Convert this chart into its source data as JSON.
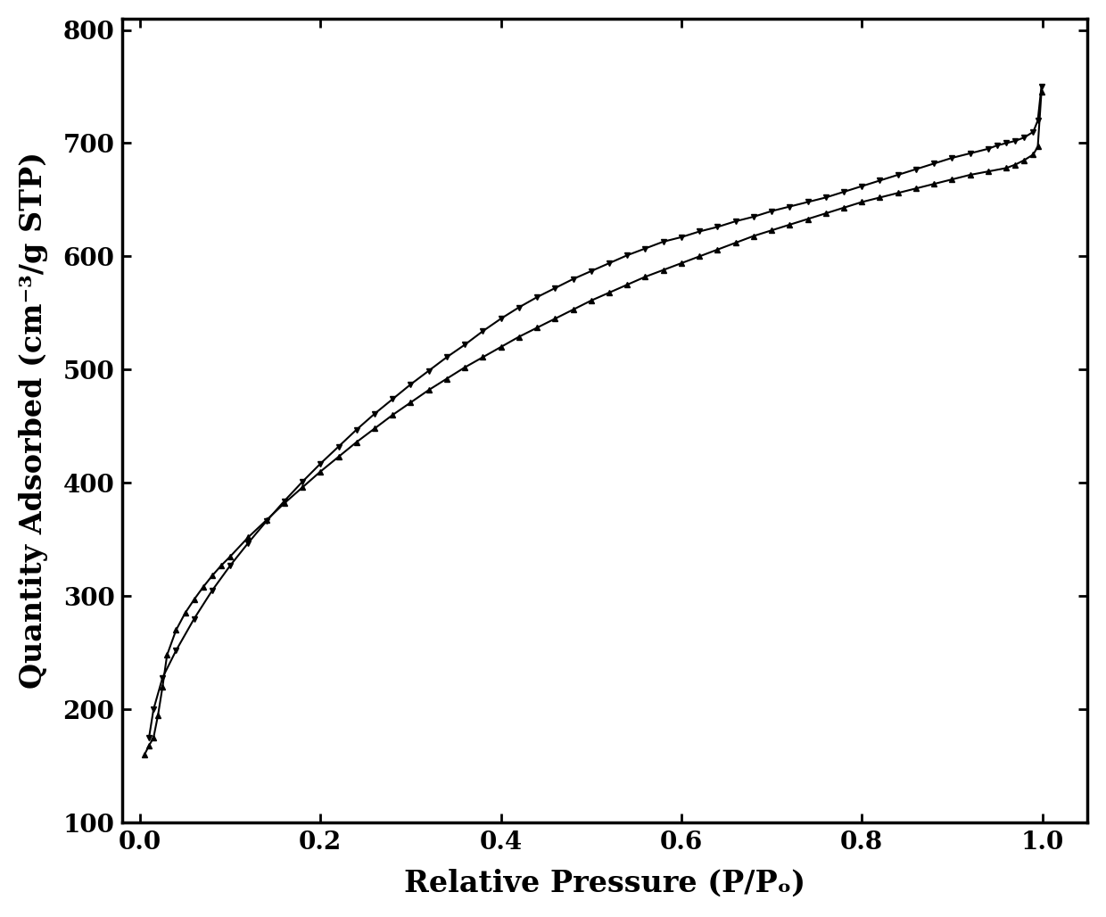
{
  "title": "",
  "xlabel": "Relative Pressure (P/Pₒ)",
  "ylabel": "Quantity Adsorbed (cm⁻³/g STP)",
  "xlim": [
    -0.02,
    1.05
  ],
  "ylim": [
    100,
    810
  ],
  "yticks": [
    100,
    200,
    300,
    400,
    500,
    600,
    700,
    800
  ],
  "xticks": [
    0.0,
    0.2,
    0.4,
    0.6,
    0.8,
    1.0
  ],
  "line_color": "#000000",
  "marker_adsorption": "^",
  "marker_desorption": "v",
  "markersize": 5,
  "linewidth": 1.5,
  "background_color": "#ffffff",
  "adsorption_x": [
    0.005,
    0.01,
    0.015,
    0.02,
    0.025,
    0.03,
    0.04,
    0.05,
    0.06,
    0.07,
    0.08,
    0.09,
    0.1,
    0.12,
    0.14,
    0.16,
    0.18,
    0.2,
    0.22,
    0.24,
    0.26,
    0.28,
    0.3,
    0.32,
    0.34,
    0.36,
    0.38,
    0.4,
    0.42,
    0.44,
    0.46,
    0.48,
    0.5,
    0.52,
    0.54,
    0.56,
    0.58,
    0.6,
    0.62,
    0.64,
    0.66,
    0.68,
    0.7,
    0.72,
    0.74,
    0.76,
    0.78,
    0.8,
    0.82,
    0.84,
    0.86,
    0.88,
    0.9,
    0.92,
    0.94,
    0.96,
    0.97,
    0.98,
    0.99,
    0.995,
    0.999
  ],
  "adsorption_y": [
    160,
    168,
    175,
    195,
    220,
    248,
    270,
    285,
    297,
    308,
    318,
    327,
    335,
    352,
    367,
    382,
    396,
    410,
    423,
    436,
    448,
    460,
    471,
    482,
    492,
    502,
    511,
    520,
    529,
    537,
    545,
    553,
    561,
    568,
    575,
    582,
    588,
    594,
    600,
    606,
    612,
    618,
    623,
    628,
    633,
    638,
    643,
    648,
    652,
    656,
    660,
    664,
    668,
    672,
    675,
    678,
    681,
    685,
    690,
    697,
    745
  ],
  "desorption_x": [
    0.999,
    0.995,
    0.99,
    0.98,
    0.97,
    0.96,
    0.95,
    0.94,
    0.92,
    0.9,
    0.88,
    0.86,
    0.84,
    0.82,
    0.8,
    0.78,
    0.76,
    0.74,
    0.72,
    0.7,
    0.68,
    0.66,
    0.64,
    0.62,
    0.6,
    0.58,
    0.56,
    0.54,
    0.52,
    0.5,
    0.48,
    0.46,
    0.44,
    0.42,
    0.4,
    0.38,
    0.36,
    0.34,
    0.32,
    0.3,
    0.28,
    0.26,
    0.24,
    0.22,
    0.2,
    0.18,
    0.16,
    0.14,
    0.12,
    0.1,
    0.08,
    0.06,
    0.04,
    0.025,
    0.015,
    0.01
  ],
  "desorption_y": [
    750,
    720,
    710,
    705,
    702,
    700,
    698,
    695,
    691,
    687,
    682,
    677,
    672,
    667,
    662,
    657,
    652,
    648,
    644,
    640,
    635,
    631,
    626,
    622,
    617,
    613,
    607,
    601,
    594,
    587,
    580,
    572,
    564,
    555,
    545,
    534,
    522,
    511,
    499,
    487,
    474,
    461,
    447,
    432,
    417,
    401,
    384,
    366,
    347,
    327,
    305,
    280,
    252,
    228,
    200,
    175
  ]
}
